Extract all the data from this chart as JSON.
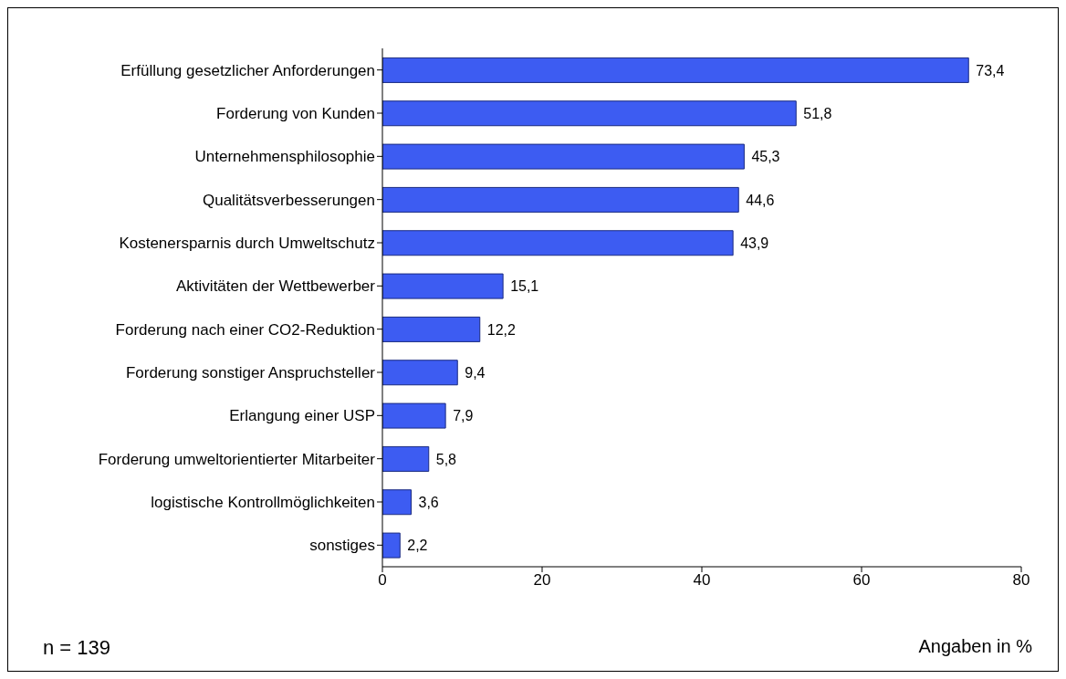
{
  "chart_data": {
    "type": "bar",
    "orientation": "horizontal",
    "categories": [
      "Erfüllung gesetzlicher Anforderungen",
      "Forderung von Kunden",
      "Unternehmensphilosophie",
      "Qualitätsverbesserungen",
      "Kostenersparnis durch Umweltschutz",
      "Aktivitäten der Wettbewerber",
      "Forderung nach einer CO2-Reduktion",
      "Forderung sonstiger Anspruchsteller",
      "Erlangung einer USP",
      "Forderung umweltorientierter Mitarbeiter",
      "logistische Kontrollmöglichkeiten",
      "sonstiges"
    ],
    "values": [
      73.4,
      51.8,
      45.3,
      44.6,
      43.9,
      15.1,
      12.2,
      9.4,
      7.9,
      5.8,
      3.6,
      2.2
    ],
    "value_labels": [
      "73,4",
      "51,8",
      "45,3",
      "44,6",
      "43,9",
      "15,1",
      "12,2",
      "9,4",
      "7,9",
      "5,8",
      "3,6",
      "2,2"
    ],
    "color": "#3d5cf2",
    "xlim": [
      0,
      80
    ],
    "xticks": [
      0,
      20,
      40,
      60,
      80
    ],
    "xlabel": "Angaben in %",
    "annotations": [
      "n = 139"
    ],
    "grid": false
  }
}
